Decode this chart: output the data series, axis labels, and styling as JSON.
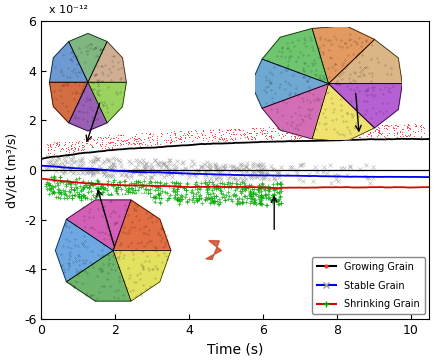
{
  "title": "",
  "xlabel": "Time (s)",
  "ylabel": "dV/dt (m³/s)",
  "xlim": [
    0,
    10.5
  ],
  "ylim": [
    -6e-12,
    6e-12
  ],
  "xticks": [
    0,
    2,
    4,
    6,
    8,
    10
  ],
  "yticks": [
    -6e-12,
    -4e-12,
    -2e-12,
    0,
    2e-12,
    4e-12,
    6e-12
  ],
  "ytick_labels": [
    "-6",
    "-4",
    "-2",
    "0",
    "2",
    "4",
    "6"
  ],
  "scale_label": "x 10⁻¹²",
  "legend_entries": [
    "Growing Grain",
    "Stable Grain",
    "Shrinking Grain"
  ],
  "growing_line_color": "#000000",
  "stable_line_color": "#0000ee",
  "shrinking_line_color": "#dd0000",
  "noise_growing_color": "#ff3333",
  "noise_stable_color": "#999999",
  "noise_shrinking_color": "#00aa00",
  "seed": 12345,
  "fig_bg": "#ffffff",
  "arrow_color": "#000000"
}
